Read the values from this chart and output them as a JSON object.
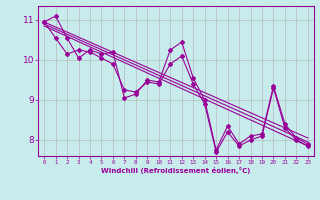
{
  "xlabel": "Windchill (Refroidissement éolien,°C)",
  "bg_color": "#c8ecec",
  "line_color": "#990099",
  "grid_color": "#b0b0b0",
  "xlim": [
    -0.5,
    23.5
  ],
  "ylim": [
    7.6,
    11.35
  ],
  "xticks": [
    0,
    1,
    2,
    3,
    4,
    5,
    6,
    7,
    8,
    9,
    10,
    11,
    12,
    13,
    14,
    15,
    16,
    17,
    18,
    19,
    20,
    21,
    22,
    23
  ],
  "yticks": [
    8,
    9,
    10,
    11
  ],
  "series1": [
    10.95,
    11.1,
    10.55,
    10.05,
    10.25,
    10.15,
    10.2,
    9.05,
    9.15,
    9.5,
    9.45,
    10.25,
    10.45,
    9.55,
    9.0,
    7.75,
    8.35,
    7.9,
    8.1,
    8.15,
    9.35,
    8.4,
    8.05,
    7.9
  ],
  "series2": [
    10.95,
    10.55,
    10.15,
    10.25,
    10.2,
    10.05,
    9.9,
    9.25,
    9.2,
    9.45,
    9.4,
    9.9,
    10.1,
    9.4,
    8.9,
    7.7,
    8.2,
    7.85,
    8.0,
    8.1,
    9.3,
    8.3,
    8.0,
    7.85
  ],
  "trend1_start": 10.95,
  "trend1_end": 8.05,
  "trend2_start": 10.9,
  "trend2_end": 7.95,
  "trend3_start": 10.85,
  "trend3_end": 7.85
}
